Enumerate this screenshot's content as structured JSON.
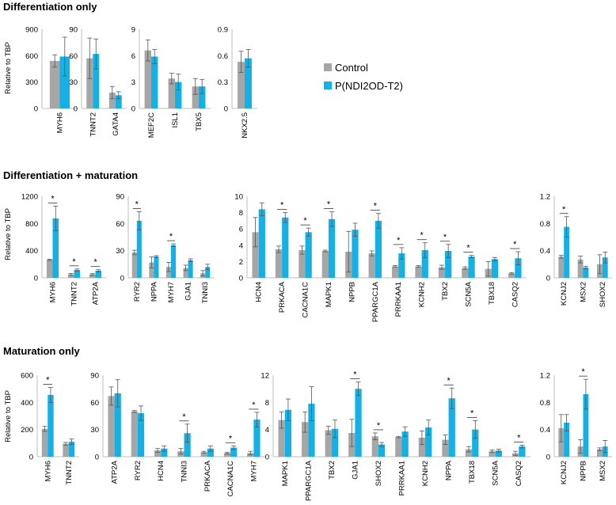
{
  "legend": {
    "items": [
      {
        "name": "Control",
        "color": "#a6a6a6"
      },
      {
        "name": "P(NDI2OD-T2)",
        "color": "#14b1e7"
      }
    ]
  },
  "colors": {
    "control": "#a6a6a6",
    "treatment": "#14b1e7",
    "error": "#555555"
  },
  "sections": [
    {
      "title": "Differentiation only",
      "ylabel": "Relative to TBP"
    },
    {
      "title": "Differentiation + maturation",
      "ylabel": "Relative to TBP"
    },
    {
      "title": "Maturation only",
      "ylabel": "Relative to TBP"
    }
  ],
  "chart_data": [
    {
      "type": "bar",
      "section": 0,
      "ylim": [
        0,
        900
      ],
      "yticks": [
        "0",
        "300",
        "600",
        "900"
      ],
      "categories": [
        "MYH6"
      ],
      "series": [
        {
          "name": "Control",
          "values": [
            540
          ],
          "errors": [
            70
          ]
        },
        {
          "name": "P(NDI2OD-T2)",
          "values": [
            590
          ],
          "errors": [
            220
          ]
        }
      ],
      "significant": [
        false
      ]
    },
    {
      "type": "bar",
      "section": 0,
      "ylim": [
        0,
        90
      ],
      "yticks": [
        "0",
        "30",
        "60",
        "90"
      ],
      "categories": [
        "TNNT2",
        "GATA4"
      ],
      "series": [
        {
          "name": "Control",
          "values": [
            57,
            18
          ],
          "errors": [
            23,
            7
          ]
        },
        {
          "name": "P(NDI2OD-T2)",
          "values": [
            62,
            15
          ],
          "errors": [
            17,
            4
          ]
        }
      ],
      "significant": [
        false,
        false
      ]
    },
    {
      "type": "bar",
      "section": 0,
      "ylim": [
        0,
        9
      ],
      "yticks": [
        "0",
        "3",
        "6",
        "9"
      ],
      "categories": [
        "MEF2C",
        "ISL1",
        "TBX5"
      ],
      "series": [
        {
          "name": "Control",
          "values": [
            6.6,
            3.4,
            2.5
          ],
          "errors": [
            1.2,
            0.6,
            0.9
          ]
        },
        {
          "name": "P(NDI2OD-T2)",
          "values": [
            5.9,
            3.0,
            2.5
          ],
          "errors": [
            0.8,
            0.9,
            0.8
          ]
        }
      ],
      "significant": [
        false,
        false,
        false
      ]
    },
    {
      "type": "bar",
      "section": 0,
      "ylim": [
        0,
        0.9
      ],
      "yticks": [
        "0",
        "0.3",
        "0.6",
        "0.9"
      ],
      "categories": [
        "NKX2.5"
      ],
      "series": [
        {
          "name": "Control",
          "values": [
            0.53
          ],
          "errors": [
            0.12
          ]
        },
        {
          "name": "P(NDI2OD-T2)",
          "values": [
            0.57
          ],
          "errors": [
            0.1
          ]
        }
      ],
      "significant": [
        false
      ]
    },
    {
      "type": "bar",
      "section": 1,
      "ylim": [
        0,
        1200
      ],
      "yticks": [
        "0",
        "400",
        "800",
        "1200"
      ],
      "categories": [
        "MYH6",
        "TNNT2",
        "ATP2A"
      ],
      "series": [
        {
          "name": "Control",
          "values": [
            265,
            50,
            50
          ],
          "errors": [
            10,
            15,
            12
          ]
        },
        {
          "name": "P(NDI2OD-T2)",
          "values": [
            875,
            115,
            105
          ],
          "errors": [
            180,
            15,
            15
          ]
        }
      ],
      "significant": [
        true,
        true,
        true
      ]
    },
    {
      "type": "bar",
      "section": 1,
      "ylim": [
        0,
        90
      ],
      "yticks": [
        "0",
        "30",
        "60",
        "90"
      ],
      "categories": [
        "RYR2",
        "NPPA",
        "MYH7",
        "GJA1",
        "TNNI3"
      ],
      "series": [
        {
          "name": "Control",
          "values": [
            28,
            17,
            12,
            11,
            5
          ],
          "errors": [
            2.5,
            6,
            5,
            3,
            3
          ]
        },
        {
          "name": "P(NDI2OD-T2)",
          "values": [
            63,
            23.5,
            36,
            19.5,
            12
          ],
          "errors": [
            10,
            1,
            1.5,
            1.5,
            3
          ]
        }
      ],
      "significant": [
        true,
        false,
        true,
        false,
        false
      ]
    },
    {
      "type": "bar",
      "section": 1,
      "ylim": [
        0,
        10
      ],
      "yticks": [
        "0",
        "2",
        "4",
        "6",
        "8",
        "10"
      ],
      "categories": [
        "HCN4",
        "PRKACA",
        "CACNA1C",
        "MAPK1",
        "NPPB",
        "PPARGC1A",
        "PRRKAA1",
        "KCNH2",
        "TBX2",
        "SCN5A",
        "TBX18",
        "CASQ2"
      ],
      "series": [
        {
          "name": "Control",
          "values": [
            5.6,
            3.5,
            3.4,
            3.3,
            3.2,
            3.0,
            1.4,
            1.4,
            1.3,
            1.2,
            1.1,
            0.55
          ],
          "errors": [
            1.8,
            0.4,
            0.5,
            0.1,
            2.5,
            0.3,
            0.1,
            0.1,
            0.25,
            0.15,
            0.9,
            0.1
          ]
        },
        {
          "name": "P(NDI2OD-T2)",
          "values": [
            8.4,
            7.4,
            5.6,
            7.2,
            5.9,
            7.0,
            3.0,
            3.4,
            3.3,
            2.6,
            2.3,
            2.4
          ],
          "errors": [
            0.8,
            0.6,
            0.5,
            0.9,
            0.8,
            0.9,
            0.7,
            0.9,
            0.8,
            0.15,
            0.2,
            0.8
          ]
        }
      ],
      "significant": [
        false,
        true,
        true,
        true,
        false,
        true,
        true,
        true,
        true,
        true,
        false,
        true
      ]
    },
    {
      "type": "bar",
      "section": 1,
      "ylim": [
        0,
        1.2
      ],
      "yticks": [
        "0",
        "0.4",
        "0.8",
        "1.2"
      ],
      "categories": [
        "KCNJ2",
        "MSX2",
        "SHOX2"
      ],
      "series": [
        {
          "name": "Control",
          "values": [
            0.31,
            0.27,
            0.2
          ],
          "errors": [
            0.02,
            0.05,
            0.14
          ]
        },
        {
          "name": "P(NDI2OD-T2)",
          "values": [
            0.75,
            0.15,
            0.3
          ],
          "errors": [
            0.15,
            0.02,
            0.08
          ]
        }
      ],
      "significant": [
        true,
        false,
        false
      ]
    },
    {
      "type": "bar",
      "section": 2,
      "ylim": [
        0,
        600
      ],
      "yticks": [
        "0",
        "200",
        "400",
        "600"
      ],
      "categories": [
        "MYH6",
        "TNNT2"
      ],
      "series": [
        {
          "name": "Control",
          "values": [
            205,
            95
          ],
          "errors": [
            18,
            10
          ]
        },
        {
          "name": "P(NDI2OD-T2)",
          "values": [
            455,
            110
          ],
          "errors": [
            55,
            20
          ]
        }
      ],
      "significant": [
        true,
        false
      ]
    },
    {
      "type": "bar",
      "section": 2,
      "ylim": [
        0,
        90
      ],
      "yticks": [
        "0",
        "30",
        "60",
        "90"
      ],
      "categories": [
        "ATP2A",
        "RYR2",
        "HCN4",
        "TNNI3",
        "PRKACA",
        "CACNA1C",
        "MYH7"
      ],
      "series": [
        {
          "name": "Control",
          "values": [
            67,
            50,
            7,
            6,
            5,
            4,
            4
          ],
          "errors": [
            10,
            1,
            2,
            3,
            1,
            1,
            2
          ]
        },
        {
          "name": "P(NDI2OD-T2)",
          "values": [
            70,
            48,
            9,
            26,
            9,
            10,
            41
          ],
          "errors": [
            15,
            8,
            3,
            10,
            3,
            2,
            8
          ]
        }
      ],
      "significant": [
        false,
        false,
        false,
        true,
        false,
        true,
        true
      ]
    },
    {
      "type": "bar",
      "section": 2,
      "ylim": [
        0,
        12
      ],
      "yticks": [
        "0",
        "4",
        "8",
        "12"
      ],
      "categories": [
        "MAPK1",
        "PPARGC1A",
        "TBX2",
        "GJA1",
        "SHOX2",
        "PRRKAA1",
        "KCNH2",
        "NPPA",
        "TBX18",
        "SCN5A",
        "CASQ2"
      ],
      "series": [
        {
          "name": "Control",
          "values": [
            5.4,
            5.1,
            3.9,
            3.5,
            3.0,
            2.9,
            2.8,
            2.5,
            1.1,
            0.8,
            0.5
          ],
          "errors": [
            1.2,
            1.5,
            0.6,
            2.0,
            0.5,
            0.1,
            1.0,
            0.7,
            0.4,
            0.2,
            0.3
          ]
        },
        {
          "name": "P(NDI2OD-T2)",
          "values": [
            6.9,
            7.8,
            4.1,
            10.0,
            1.8,
            3.7,
            4.3,
            8.6,
            4.0,
            0.9,
            1.5
          ],
          "errors": [
            1.6,
            2.5,
            1.3,
            1.0,
            0.3,
            0.7,
            1.1,
            1.5,
            1.3,
            0.2,
            0.2
          ]
        }
      ],
      "significant": [
        false,
        false,
        false,
        true,
        true,
        false,
        false,
        true,
        true,
        false,
        true
      ]
    },
    {
      "type": "bar",
      "section": 2,
      "ylim": [
        0,
        1.2
      ],
      "yticks": [
        "0",
        "0.4",
        "0.8",
        "1.2"
      ],
      "categories": [
        "KCNJ2",
        "NPPB",
        "MSX2"
      ],
      "series": [
        {
          "name": "Control",
          "values": [
            0.42,
            0.15,
            0.11
          ],
          "errors": [
            0.2,
            0.1,
            0.02
          ]
        },
        {
          "name": "P(NDI2OD-T2)",
          "values": [
            0.5,
            0.92,
            0.15
          ],
          "errors": [
            0.12,
            0.22,
            0.09
          ]
        }
      ],
      "significant": [
        false,
        true,
        false
      ]
    }
  ]
}
